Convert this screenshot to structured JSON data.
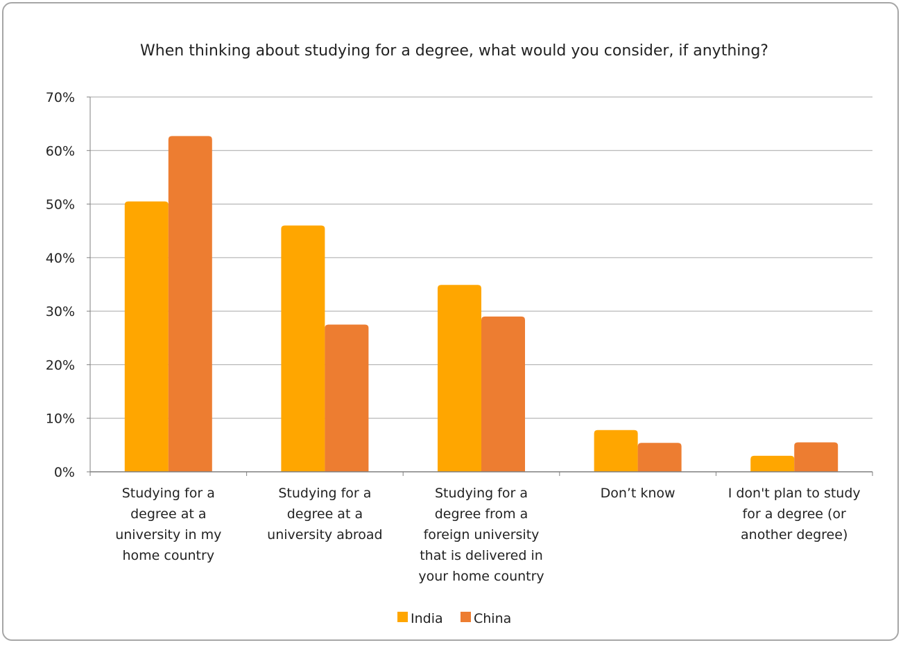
{
  "chart_data": {
    "type": "bar",
    "title": "When thinking about studying for a degree, what would you consider, if anything?",
    "xlabel": "",
    "ylabel": "",
    "ylim": [
      0,
      0.7
    ],
    "y_ticks": [
      "0%",
      "10%",
      "20%",
      "30%",
      "40%",
      "50%",
      "60%",
      "70%"
    ],
    "categories": [
      [
        "Studying for a",
        "degree at a",
        "university in my",
        "home country"
      ],
      [
        "Studying for a",
        "degree at a",
        "university abroad"
      ],
      [
        "Studying for a",
        "degree from a",
        "foreign university",
        "that is delivered in",
        "your home country"
      ],
      [
        "Don’t know"
      ],
      [
        "I don't plan to study",
        "for a degree (or",
        "another degree)"
      ]
    ],
    "series": [
      {
        "name": "India",
        "color": "#FFA600",
        "values": [
          0.505,
          0.46,
          0.349,
          0.078,
          0.03
        ]
      },
      {
        "name": "China",
        "color": "#ED7D31",
        "values": [
          0.627,
          0.275,
          0.29,
          0.054,
          0.055
        ]
      }
    ],
    "grid": true,
    "legend": "bottom"
  }
}
